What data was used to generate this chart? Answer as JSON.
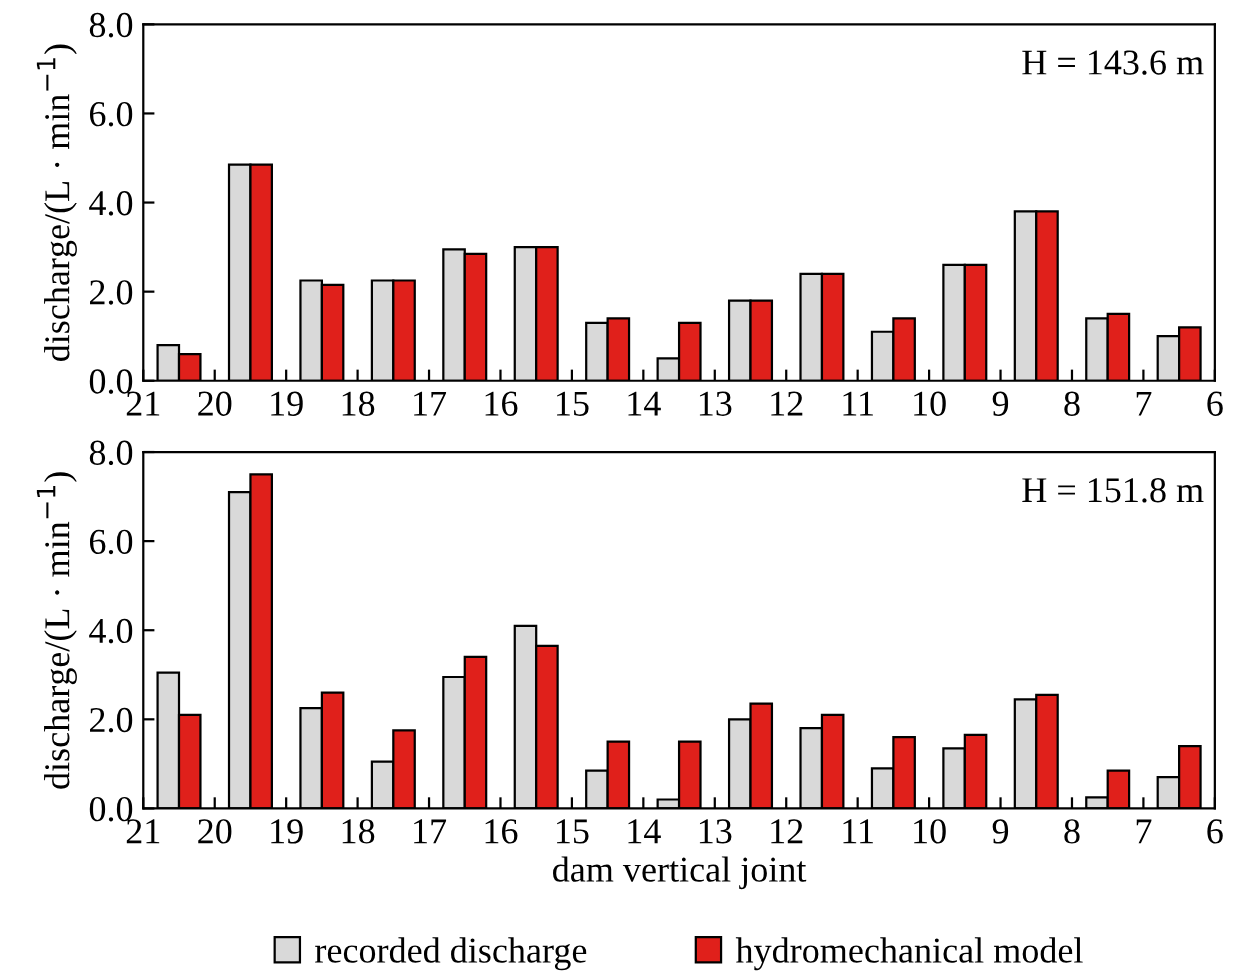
{
  "chart_data": [
    {
      "type": "bar",
      "x": [
        20.5,
        19.5,
        18.5,
        17.5,
        16.5,
        15.5,
        14.5,
        13.5,
        12.5,
        11.5,
        10.5,
        9.5,
        8.5,
        7.5,
        6.5
      ],
      "xlim": [
        21,
        6
      ],
      "xticks": [
        21,
        20,
        19,
        18,
        17,
        16,
        15,
        14,
        13,
        12,
        11,
        10,
        9,
        8,
        7,
        6
      ],
      "ylim": [
        0,
        8
      ],
      "yticks": [
        {
          "value": 0,
          "label": "0.0"
        },
        {
          "value": 2,
          "label": "2.0"
        },
        {
          "value": 4,
          "label": "4.0"
        },
        {
          "value": 6,
          "label": "6.0"
        },
        {
          "value": 8,
          "label": "8.0"
        }
      ],
      "ylabel": "discharge/(L · min$^{−1}$)",
      "annotations": [
        "H = 143.6 m"
      ],
      "grid": false,
      "series": [
        {
          "color": "#d9d9d9",
          "values": [
            0.8,
            4.85,
            2.25,
            2.25,
            2.95,
            3.0,
            1.3,
            0.5,
            1.8,
            2.4,
            1.1,
            2.6,
            3.8,
            1.4,
            1.0
          ]
        },
        {
          "color": "#e0201b",
          "values": [
            0.6,
            4.85,
            2.15,
            2.25,
            2.85,
            3.0,
            1.4,
            1.3,
            1.8,
            2.4,
            1.4,
            2.6,
            3.8,
            1.5,
            1.2
          ]
        }
      ]
    },
    {
      "type": "bar",
      "x": [
        20.5,
        19.5,
        18.5,
        17.5,
        16.5,
        15.5,
        14.5,
        13.5,
        12.5,
        11.5,
        10.5,
        9.5,
        8.5,
        7.5,
        6.5
      ],
      "xlim": [
        21,
        6
      ],
      "xticks": [
        21,
        20,
        19,
        18,
        17,
        16,
        15,
        14,
        13,
        12,
        11,
        10,
        9,
        8,
        7,
        6
      ],
      "ylim": [
        0,
        8
      ],
      "yticks": [
        {
          "value": 0,
          "label": "0.0"
        },
        {
          "value": 2,
          "label": "2.0"
        },
        {
          "value": 4,
          "label": "4.0"
        },
        {
          "value": 6,
          "label": "6.0"
        },
        {
          "value": 8,
          "label": "8.0"
        }
      ],
      "ylabel": "discharge/(L · min$^{−1}$)",
      "xlabel": "dam vertical joint",
      "annotations": [
        "H = 151.8 m"
      ],
      "grid": false,
      "legend": "bottom",
      "series": [
        {
          "name": "recorded discharge",
          "color": "#d9d9d9",
          "values": [
            3.05,
            7.1,
            2.25,
            1.05,
            2.95,
            4.1,
            0.85,
            0.2,
            2.0,
            1.8,
            0.9,
            1.35,
            2.45,
            0.25,
            0.7
          ]
        },
        {
          "name": "hydromechanical model",
          "color": "#e0201b",
          "values": [
            2.1,
            7.5,
            2.6,
            1.75,
            3.4,
            3.65,
            1.5,
            1.5,
            2.35,
            2.1,
            1.6,
            1.65,
            2.55,
            0.85,
            1.4
          ]
        }
      ]
    }
  ]
}
